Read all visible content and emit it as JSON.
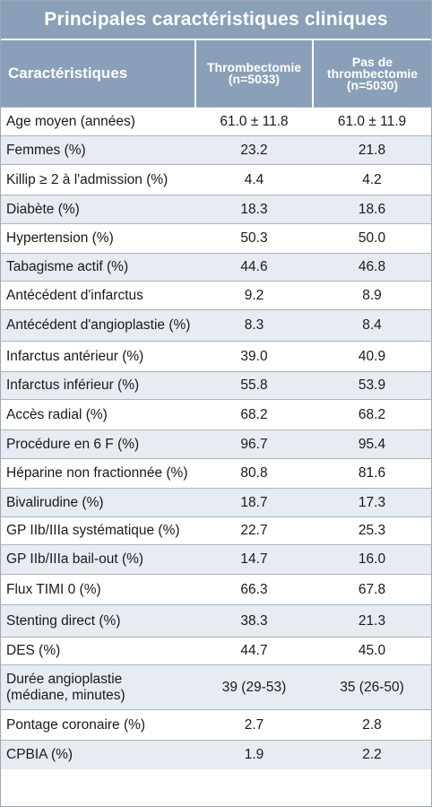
{
  "title": "Principales caractéristiques cliniques",
  "header": {
    "col1": "Caractéristiques",
    "col2_line1": "Thrombectomie",
    "col2_line2": "(n=5033)",
    "col3_line1": "Pas de",
    "col3_line2": "thrombectomie",
    "col3_line3": "(n=5030)"
  },
  "rows": [
    {
      "label": "Age moyen (années)",
      "a": "61.0 ± 11.8",
      "b": "61.0 ± 11.9"
    },
    {
      "label": "Femmes (%)",
      "a": "23.2",
      "b": "21.8"
    },
    {
      "label": "Killip ≥ 2 à l'admission (%)",
      "a": "4.4",
      "b": "4.2"
    },
    {
      "label": "Diabète (%)",
      "a": "18.3",
      "b": "18.6"
    },
    {
      "label": "Hypertension (%)",
      "a": "50.3",
      "b": "50.0"
    },
    {
      "label": "Tabagisme actif (%)",
      "a": "44.6",
      "b": "46.8"
    },
    {
      "label": "Antécédent d'infarctus",
      "a": "9.2",
      "b": "8.9"
    },
    {
      "label": "Antécédent d'angioplastie (%)",
      "a": "8.3",
      "b": "8.4"
    },
    {
      "label": "Infarctus antérieur (%)",
      "a": "39.0",
      "b": "40.9"
    },
    {
      "label": "Infarctus inférieur (%)",
      "a": "55.8",
      "b": "53.9"
    },
    {
      "label": "Accès radial (%)",
      "a": "68.2",
      "b": "68.2"
    },
    {
      "label": "Procédure en 6 F (%)",
      "a": "96.7",
      "b": "95.4"
    },
    {
      "label": "Héparine non fractionnée (%)",
      "a": "80.8",
      "b": "81.6"
    },
    {
      "label": "Bivalirudine (%)",
      "a": "18.7",
      "b": "17.3"
    },
    {
      "label": "GP IIb/IIIa systématique (%)",
      "a": "22.7",
      "b": "25.3"
    },
    {
      "label": "GP IIb/IIIa bail-out (%)",
      "a": "14.7",
      "b": "16.0"
    },
    {
      "label": "Flux TIMI 0 (%)",
      "a": "66.3",
      "b": "67.8"
    },
    {
      "label": "Stenting direct (%)",
      "a": "38.3",
      "b": "21.3"
    },
    {
      "label": "DES (%)",
      "a": "44.7",
      "b": "45.0"
    },
    {
      "label": "Durée angioplastie",
      "label2": "(médiane, minutes)",
      "a": "39 (29-53)",
      "b": "35 (26-50)"
    },
    {
      "label": "Pontage coronaire (%)",
      "a": "2.7",
      "b": "2.8"
    },
    {
      "label": "CPBIA (%)",
      "a": "1.9",
      "b": "2.2"
    }
  ]
}
